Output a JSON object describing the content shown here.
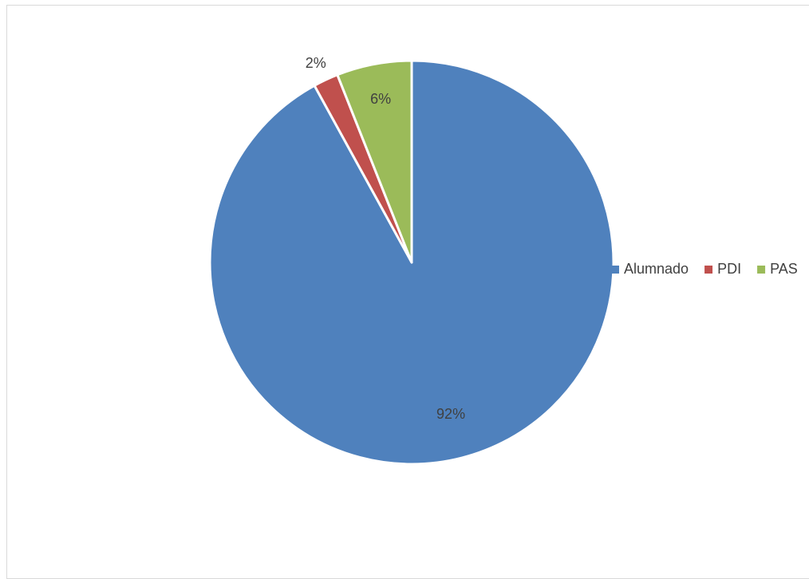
{
  "chart_data": {
    "type": "pie",
    "categories": [
      "Alumnado",
      "PDI",
      "PAS"
    ],
    "values": [
      92,
      2,
      6
    ],
    "data_labels": [
      "92%",
      "2%",
      "6%"
    ],
    "colors": [
      "#4f81bd",
      "#c0504d",
      "#9bbb59"
    ],
    "legend": "right",
    "start_angle": "12 o'clock, clockwise"
  }
}
